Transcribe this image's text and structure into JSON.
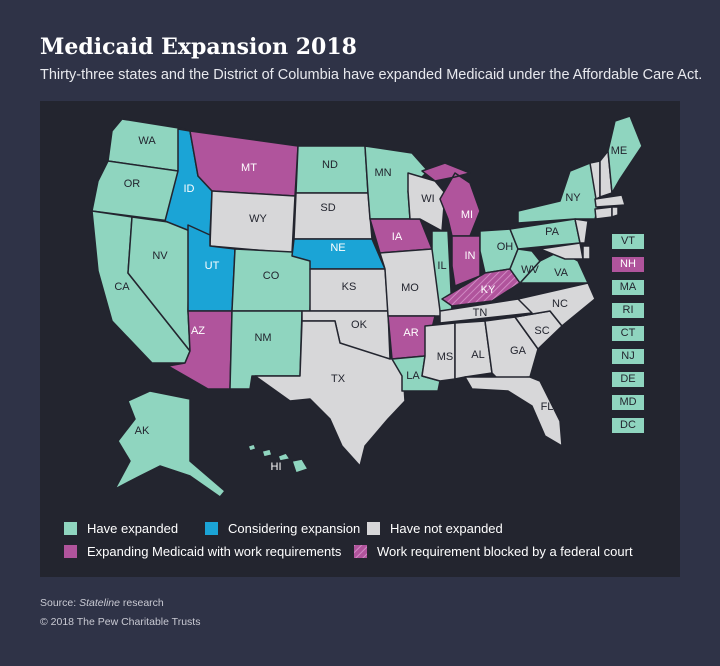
{
  "title": "Medicaid Expansion 2018",
  "subtitle": "Thirty-three states and the District of Columbia have expanded Medicaid under the Affordable Care Act.",
  "colors": {
    "background": "#2f3347",
    "panel": "#23252f",
    "expanded": "#8fd5bf",
    "considering": "#1ba4d6",
    "not_expanded": "#d7d7d9",
    "work_requirements": "#b0549c"
  },
  "map": {
    "states": [
      {
        "abbr": "WA",
        "status": "expanded"
      },
      {
        "abbr": "OR",
        "status": "expanded"
      },
      {
        "abbr": "CA",
        "status": "expanded"
      },
      {
        "abbr": "NV",
        "status": "expanded"
      },
      {
        "abbr": "ID",
        "status": "considering"
      },
      {
        "abbr": "MT",
        "status": "work_requirements"
      },
      {
        "abbr": "WY",
        "status": "not_expanded"
      },
      {
        "abbr": "UT",
        "status": "considering"
      },
      {
        "abbr": "AZ",
        "status": "work_requirements"
      },
      {
        "abbr": "CO",
        "status": "expanded"
      },
      {
        "abbr": "NM",
        "status": "expanded"
      },
      {
        "abbr": "ND",
        "status": "expanded"
      },
      {
        "abbr": "SD",
        "status": "not_expanded"
      },
      {
        "abbr": "NE",
        "status": "considering"
      },
      {
        "abbr": "KS",
        "status": "not_expanded"
      },
      {
        "abbr": "OK",
        "status": "not_expanded"
      },
      {
        "abbr": "TX",
        "status": "not_expanded"
      },
      {
        "abbr": "MN",
        "status": "expanded"
      },
      {
        "abbr": "IA",
        "status": "work_requirements"
      },
      {
        "abbr": "MO",
        "status": "not_expanded"
      },
      {
        "abbr": "AR",
        "status": "work_requirements"
      },
      {
        "abbr": "LA",
        "status": "expanded"
      },
      {
        "abbr": "WI",
        "status": "not_expanded"
      },
      {
        "abbr": "IL",
        "status": "expanded"
      },
      {
        "abbr": "MI",
        "status": "work_requirements"
      },
      {
        "abbr": "IN",
        "status": "work_requirements"
      },
      {
        "abbr": "OH",
        "status": "expanded"
      },
      {
        "abbr": "KY",
        "status": "work_requirement_blocked"
      },
      {
        "abbr": "TN",
        "status": "not_expanded"
      },
      {
        "abbr": "MS",
        "status": "not_expanded"
      },
      {
        "abbr": "AL",
        "status": "not_expanded"
      },
      {
        "abbr": "GA",
        "status": "not_expanded"
      },
      {
        "abbr": "FL",
        "status": "not_expanded"
      },
      {
        "abbr": "SC",
        "status": "not_expanded"
      },
      {
        "abbr": "NC",
        "status": "not_expanded"
      },
      {
        "abbr": "VA",
        "status": "expanded"
      },
      {
        "abbr": "WV",
        "status": "expanded"
      },
      {
        "abbr": "PA",
        "status": "expanded"
      },
      {
        "abbr": "NY",
        "status": "expanded"
      },
      {
        "abbr": "ME",
        "status": "expanded"
      },
      {
        "abbr": "AK",
        "status": "expanded"
      },
      {
        "abbr": "HI",
        "status": "expanded"
      }
    ],
    "side_boxes": [
      {
        "abbr": "VT",
        "status": "expanded"
      },
      {
        "abbr": "NH",
        "status": "work_requirements"
      },
      {
        "abbr": "MA",
        "status": "expanded"
      },
      {
        "abbr": "RI",
        "status": "expanded"
      },
      {
        "abbr": "CT",
        "status": "expanded"
      },
      {
        "abbr": "NJ",
        "status": "expanded"
      },
      {
        "abbr": "DE",
        "status": "expanded"
      },
      {
        "abbr": "MD",
        "status": "expanded"
      },
      {
        "abbr": "DC",
        "status": "expanded"
      }
    ]
  },
  "legend": {
    "expanded": "Have expanded",
    "considering": "Considering expansion",
    "not_expanded": "Have not expanded",
    "work_requirements": "Expanding Medicaid with work requirements",
    "blocked": "Work requirement blocked by a federal court"
  },
  "footer": {
    "source_prefix": "Source: ",
    "source_name": "Stateline",
    "source_suffix": " research",
    "copyright": "© 2018 The Pew Charitable Trusts"
  }
}
